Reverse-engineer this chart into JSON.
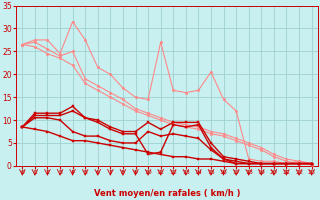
{
  "xlabel": "Vent moyen/en rafales ( km/h )",
  "background_color": "#c8f0f0",
  "grid_color": "#a0d0d0",
  "text_color": "#cc0000",
  "xlim": [
    -0.5,
    23.5
  ],
  "ylim": [
    0,
    35
  ],
  "xticks": [
    0,
    1,
    2,
    3,
    4,
    5,
    6,
    7,
    8,
    9,
    10,
    11,
    12,
    13,
    14,
    15,
    16,
    17,
    18,
    19,
    20,
    21,
    22,
    23
  ],
  "yticks": [
    0,
    5,
    10,
    15,
    20,
    25,
    30,
    35
  ],
  "series": [
    {
      "x": [
        0,
        1,
        2,
        3,
        4,
        5,
        6,
        7,
        8,
        9,
        10,
        11,
        12,
        13,
        14,
        15,
        16,
        17,
        18,
        19,
        20,
        21,
        22,
        23
      ],
      "y": [
        26.5,
        27.5,
        27.5,
        24.5,
        31.5,
        27.5,
        21.5,
        20.0,
        17.0,
        15.0,
        14.5,
        27.0,
        16.5,
        16.0,
        16.5,
        20.5,
        14.5,
        12.0,
        1.5,
        1.0,
        1.0,
        0.5,
        1.0,
        0.5
      ],
      "color": "#ff8888",
      "linewidth": 0.8,
      "marker": "o",
      "markersize": 1.8,
      "zorder": 3
    },
    {
      "x": [
        0,
        1,
        2,
        3,
        4,
        5,
        6,
        7,
        8,
        9,
        10,
        11,
        12,
        13,
        14,
        15,
        16,
        17,
        18,
        19,
        20,
        21,
        22,
        23
      ],
      "y": [
        26.5,
        27.0,
        25.5,
        24.0,
        25.0,
        19.0,
        17.5,
        16.0,
        14.5,
        12.5,
        11.5,
        10.5,
        9.5,
        9.0,
        8.5,
        7.5,
        7.0,
        6.0,
        5.0,
        4.0,
        2.5,
        1.5,
        1.0,
        0.5
      ],
      "color": "#ff8888",
      "linewidth": 0.8,
      "marker": "o",
      "markersize": 1.8,
      "zorder": 3
    },
    {
      "x": [
        0,
        1,
        2,
        3,
        4,
        5,
        6,
        7,
        8,
        9,
        10,
        11,
        12,
        13,
        14,
        15,
        16,
        17,
        18,
        19,
        20,
        21,
        22,
        23
      ],
      "y": [
        26.5,
        26.0,
        24.5,
        23.5,
        22.0,
        18.0,
        16.5,
        15.0,
        13.5,
        12.0,
        11.0,
        10.0,
        9.0,
        8.5,
        8.0,
        7.0,
        6.5,
        5.5,
        4.5,
        3.5,
        2.0,
        1.0,
        0.5,
        0.2
      ],
      "color": "#ff8888",
      "linewidth": 0.8,
      "marker": "o",
      "markersize": 1.8,
      "zorder": 3
    },
    {
      "x": [
        0,
        1,
        2,
        3,
        4,
        5,
        6,
        7,
        8,
        9,
        10,
        11,
        12,
        13,
        14,
        15,
        16,
        17,
        18,
        19,
        20,
        21,
        22,
        23
      ],
      "y": [
        8.5,
        11.5,
        11.5,
        11.5,
        13.0,
        10.5,
        10.0,
        8.5,
        7.5,
        7.5,
        9.5,
        8.0,
        9.5,
        9.5,
        9.5,
        5.0,
        2.0,
        1.5,
        1.0,
        0.5,
        0.5,
        0.5,
        0.5,
        0.5
      ],
      "color": "#cc0000",
      "linewidth": 1.0,
      "marker": "s",
      "markersize": 2.0,
      "zorder": 4
    },
    {
      "x": [
        0,
        1,
        2,
        3,
        4,
        5,
        6,
        7,
        8,
        9,
        10,
        11,
        12,
        13,
        14,
        15,
        16,
        17,
        18,
        19,
        20,
        21,
        22,
        23
      ],
      "y": [
        8.5,
        11.0,
        11.0,
        11.0,
        12.0,
        10.5,
        9.5,
        8.0,
        7.0,
        7.0,
        2.5,
        3.0,
        9.0,
        8.5,
        9.0,
        4.0,
        1.5,
        1.0,
        0.5,
        0.5,
        0.5,
        0.5,
        0.5,
        0.5
      ],
      "color": "#cc0000",
      "linewidth": 1.0,
      "marker": "s",
      "markersize": 2.0,
      "zorder": 4
    },
    {
      "x": [
        0,
        1,
        2,
        3,
        4,
        5,
        6,
        7,
        8,
        9,
        10,
        11,
        12,
        13,
        14,
        15,
        16,
        17,
        18,
        19,
        20,
        21,
        22,
        23
      ],
      "y": [
        8.5,
        10.5,
        10.5,
        10.0,
        7.5,
        6.5,
        6.5,
        5.5,
        5.0,
        5.0,
        7.5,
        6.5,
        7.0,
        6.5,
        6.0,
        3.5,
        1.5,
        0.5,
        0.5,
        0.5,
        0.5,
        0.5,
        0.5,
        0.5
      ],
      "color": "#cc0000",
      "linewidth": 1.0,
      "marker": "s",
      "markersize": 2.0,
      "zorder": 4
    },
    {
      "x": [
        0,
        1,
        2,
        3,
        4,
        5,
        6,
        7,
        8,
        9,
        10,
        11,
        12,
        13,
        14,
        15,
        16,
        17,
        18,
        19,
        20,
        21,
        22,
        23
      ],
      "y": [
        8.5,
        8.0,
        7.5,
        6.5,
        5.5,
        5.5,
        5.0,
        4.5,
        4.0,
        3.5,
        3.0,
        2.5,
        2.0,
        2.0,
        1.5,
        1.5,
        1.0,
        0.5,
        0.5,
        0.5,
        0.5,
        0.5,
        0.5,
        0.5
      ],
      "color": "#cc0000",
      "linewidth": 1.0,
      "marker": "s",
      "markersize": 2.0,
      "zorder": 4
    }
  ],
  "arrow_color": "#cc0000",
  "xlabel_fontsize": 6.0,
  "tick_fontsize_x": 4.5,
  "tick_fontsize_y": 5.5
}
